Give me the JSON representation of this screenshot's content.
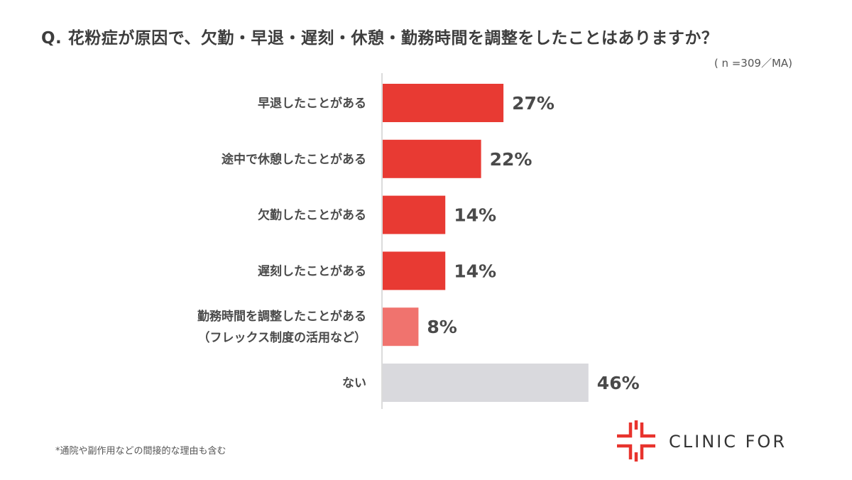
{
  "title": "Q. 花粉症が原因で、欠勤・早退・遅刻・休憩・勤務時間を調整をしたことはありますか？",
  "sample_note": "( n =309／MA)",
  "footnote": "*通院や副作用などの間接的な理由も含む",
  "logo": {
    "text": "CLINIC FOR",
    "icon": "clinic-cross-icon",
    "color": "#e8332d"
  },
  "chart_data": {
    "type": "bar",
    "orientation": "horizontal",
    "categories": [
      [
        "早退したことがある"
      ],
      [
        "途中で休憩したことがある"
      ],
      [
        "欠勤したことがある"
      ],
      [
        "遅刻したことがある"
      ],
      [
        "勤務時間を調整したことがある",
        "（フレックス制度の活用など）"
      ],
      [
        "ない"
      ]
    ],
    "values": [
      27,
      22,
      14,
      14,
      8,
      46
    ],
    "value_labels": [
      "27%",
      "22%",
      "14%",
      "14%",
      "8%",
      "46%"
    ],
    "bar_colors": [
      "#e83a33",
      "#e83a33",
      "#e83a33",
      "#e83a33",
      "#f0736e",
      "#d9d9dd"
    ],
    "xlim": [
      0,
      100
    ],
    "grid": false,
    "legend": "none"
  }
}
